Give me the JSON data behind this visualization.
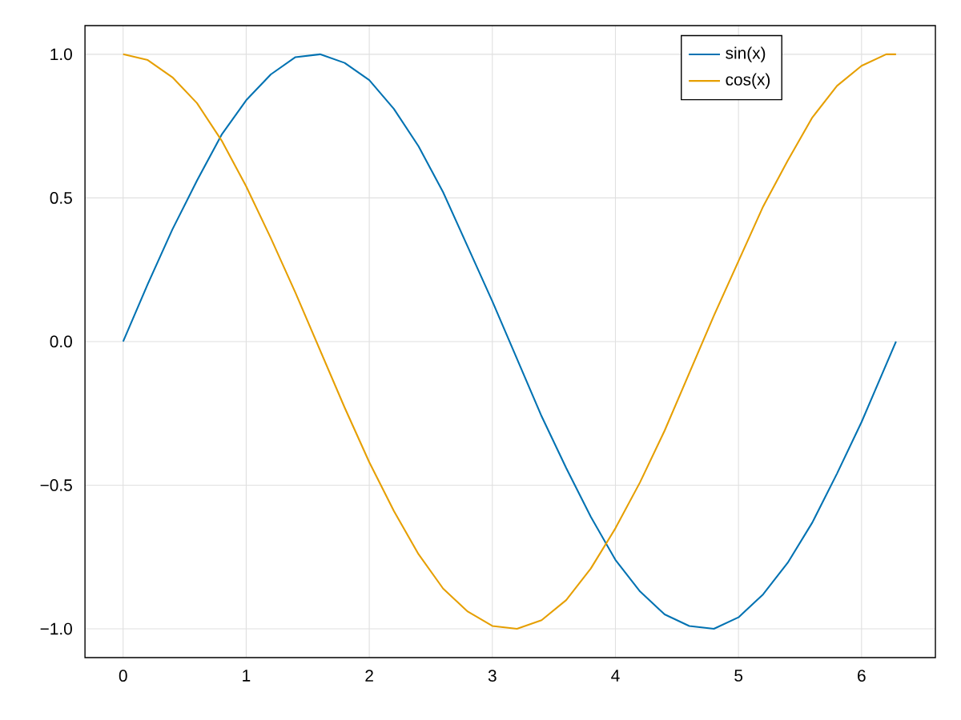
{
  "chart_data": {
    "type": "line",
    "x": [
      0,
      0.2,
      0.4,
      0.6,
      0.8,
      1.0,
      1.2,
      1.4,
      1.6,
      1.8,
      2.0,
      2.2,
      2.4,
      2.6,
      2.8,
      3.0,
      3.2,
      3.4,
      3.6,
      3.8,
      4.0,
      4.2,
      4.4,
      4.6,
      4.8,
      5.0,
      5.2,
      5.4,
      5.6,
      5.8,
      6.0,
      6.2,
      6.28
    ],
    "series": [
      {
        "name": "sin(x)",
        "color": "#0072b2",
        "values": [
          0,
          0.2,
          0.39,
          0.56,
          0.72,
          0.84,
          0.93,
          0.99,
          1.0,
          0.97,
          0.91,
          0.81,
          0.68,
          0.52,
          0.33,
          0.14,
          -0.06,
          -0.26,
          -0.44,
          -0.61,
          -0.76,
          -0.87,
          -0.95,
          -0.99,
          -1.0,
          -0.96,
          -0.88,
          -0.77,
          -0.63,
          -0.46,
          -0.28,
          -0.08,
          0
        ]
      },
      {
        "name": "cos(x)",
        "color": "#e69f00",
        "values": [
          1,
          0.98,
          0.92,
          0.83,
          0.7,
          0.54,
          0.36,
          0.17,
          -0.03,
          -0.23,
          -0.42,
          -0.59,
          -0.74,
          -0.86,
          -0.94,
          -0.99,
          -1.0,
          -0.97,
          -0.9,
          -0.79,
          -0.65,
          -0.49,
          -0.31,
          -0.11,
          0.09,
          0.28,
          0.47,
          0.63,
          0.78,
          0.89,
          0.96,
          1.0,
          1
        ]
      }
    ],
    "xlim": [
      -0.31,
      6.6
    ],
    "ylim": [
      -1.1,
      1.1
    ],
    "xticks": [
      0,
      1,
      2,
      3,
      4,
      5,
      6
    ],
    "yticks": [
      {
        "value": -1,
        "label": "−1.0"
      },
      {
        "value": -0.5,
        "label": "−0.5"
      },
      {
        "value": 0,
        "label": "0.0"
      },
      {
        "value": 0.5,
        "label": "0.5"
      },
      {
        "value": 1,
        "label": "1.0"
      }
    ],
    "grid": true,
    "legend": "top right",
    "marker": "none",
    "line_style": "solid"
  }
}
